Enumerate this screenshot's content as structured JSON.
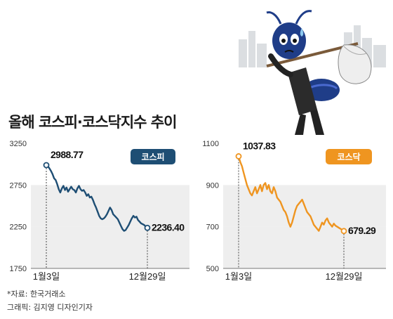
{
  "title": "올해 코스피·코스닥지수 추이",
  "notes": {
    "source": "*자료: 한국거래소",
    "credit": "그래픽: 김지영 디자인기자"
  },
  "colors": {
    "kospi": "#1e4e74",
    "kosdaq": "#ef9520",
    "band": "#eeeeee"
  },
  "chart_data": [
    {
      "type": "line",
      "name": "코스피",
      "y_ticks": [
        "3250",
        "2750",
        "2250",
        "1750"
      ],
      "ylim": [
        1750,
        3250
      ],
      "x_labels": [
        "1월3일",
        "12월29일"
      ],
      "start": {
        "label": "2988.77",
        "value": 2988.77
      },
      "end": {
        "label": "2236.40",
        "value": 2236.4
      },
      "values": [
        2988.77,
        2975,
        2950,
        2920,
        2880,
        2830,
        2810,
        2760,
        2700,
        2660,
        2710,
        2740,
        2690,
        2720,
        2670,
        2700,
        2730,
        2700,
        2690,
        2660,
        2710,
        2740,
        2700,
        2680,
        2690,
        2660,
        2620,
        2640,
        2600,
        2610,
        2570,
        2520,
        2480,
        2430,
        2380,
        2350,
        2340,
        2350,
        2370,
        2400,
        2440,
        2480,
        2450,
        2400,
        2380,
        2360,
        2340,
        2300,
        2260,
        2220,
        2200,
        2210,
        2240,
        2270,
        2310,
        2350,
        2380,
        2360,
        2370,
        2330,
        2310,
        2290,
        2280,
        2270,
        2250,
        2236.4
      ]
    },
    {
      "type": "line",
      "name": "코스닥",
      "y_ticks": [
        "1100",
        "900",
        "700",
        "500"
      ],
      "ylim": [
        500,
        1100
      ],
      "x_labels": [
        "1월3일",
        "12월29일"
      ],
      "start": {
        "label": "1037.83",
        "value": 1037.83
      },
      "end": {
        "label": "679.29",
        "value": 679.29
      },
      "values": [
        1037.83,
        1010,
        990,
        960,
        930,
        900,
        880,
        860,
        850,
        870,
        890,
        860,
        880,
        900,
        870,
        900,
        910,
        880,
        900,
        870,
        860,
        890,
        870,
        840,
        830,
        820,
        800,
        780,
        770,
        750,
        720,
        700,
        720,
        750,
        780,
        800,
        810,
        820,
        830,
        810,
        790,
        770,
        760,
        750,
        730,
        710,
        700,
        690,
        680,
        700,
        720,
        710,
        730,
        740,
        720,
        710,
        700,
        715,
        705,
        700,
        695,
        690,
        685,
        679.29
      ]
    }
  ]
}
